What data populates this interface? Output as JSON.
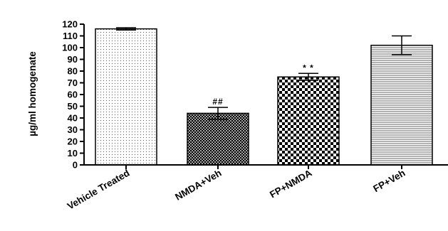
{
  "chart_data": {
    "type": "bar",
    "title": "",
    "xlabel": "",
    "ylabel": "µg/ml homogenate",
    "ylim": [
      0,
      120
    ],
    "yticks": [
      0,
      10,
      20,
      30,
      40,
      50,
      60,
      70,
      80,
      90,
      100,
      110,
      120
    ],
    "grid": false,
    "legend": "none",
    "categories": [
      "Vehicle Treated",
      "NMDA+Veh",
      "FP+NMDA",
      "FP+Veh"
    ],
    "values": [
      116,
      44,
      75,
      102
    ],
    "error_bars": [
      1,
      5,
      3,
      8
    ],
    "annotations": [
      "",
      "##",
      "* *",
      ""
    ],
    "patterns": [
      "fine-dots",
      "dense-crosshatch",
      "checkerboard",
      "horizontal-lines"
    ]
  }
}
